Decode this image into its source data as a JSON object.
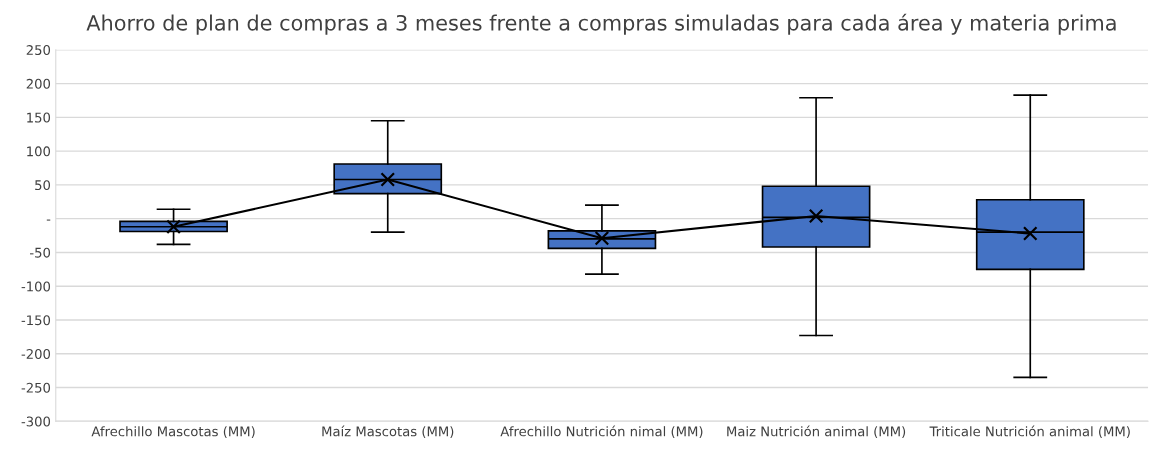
{
  "chart_data": {
    "type": "box",
    "title": "Ahorro de plan de compras a 3 meses frente a compras simuladas para cada área y materia prima",
    "categories": [
      "Afrechillo Mascotas (MM)",
      "Maíz Mascotas (MM)",
      "Afrechillo Nutrición nimal (MM)",
      "Maiz Nutrición animal (MM)",
      "Triticale Nutrición animal (MM)"
    ],
    "boxes": [
      {
        "low": -38,
        "q1": -19,
        "median": -12,
        "q3": -4,
        "high": 14,
        "mean": -12
      },
      {
        "low": -20,
        "q1": 37,
        "median": 58,
        "q3": 81,
        "high": 145,
        "mean": 58
      },
      {
        "low": -82,
        "q1": -44,
        "median": -30,
        "q3": -18,
        "high": 20,
        "mean": -29
      },
      {
        "low": -173,
        "q1": -42,
        "median": 2,
        "q3": 48,
        "high": 179,
        "mean": 4
      },
      {
        "low": -235,
        "q1": -75,
        "median": -20,
        "q3": 28,
        "high": 183,
        "mean": -22
      }
    ],
    "color": "#4472c4",
    "series": [
      {
        "type": "line",
        "color": "#000000",
        "values": [
          -12,
          58,
          -29,
          4,
          -22
        ]
      }
    ],
    "ylim": [
      -300,
      250
    ],
    "yticks": [
      -300,
      -250,
      -200,
      -150,
      -100,
      -50,
      {
        "value": 0,
        "label": "-"
      },
      50,
      100,
      150,
      200,
      250
    ],
    "grid": "y"
  }
}
